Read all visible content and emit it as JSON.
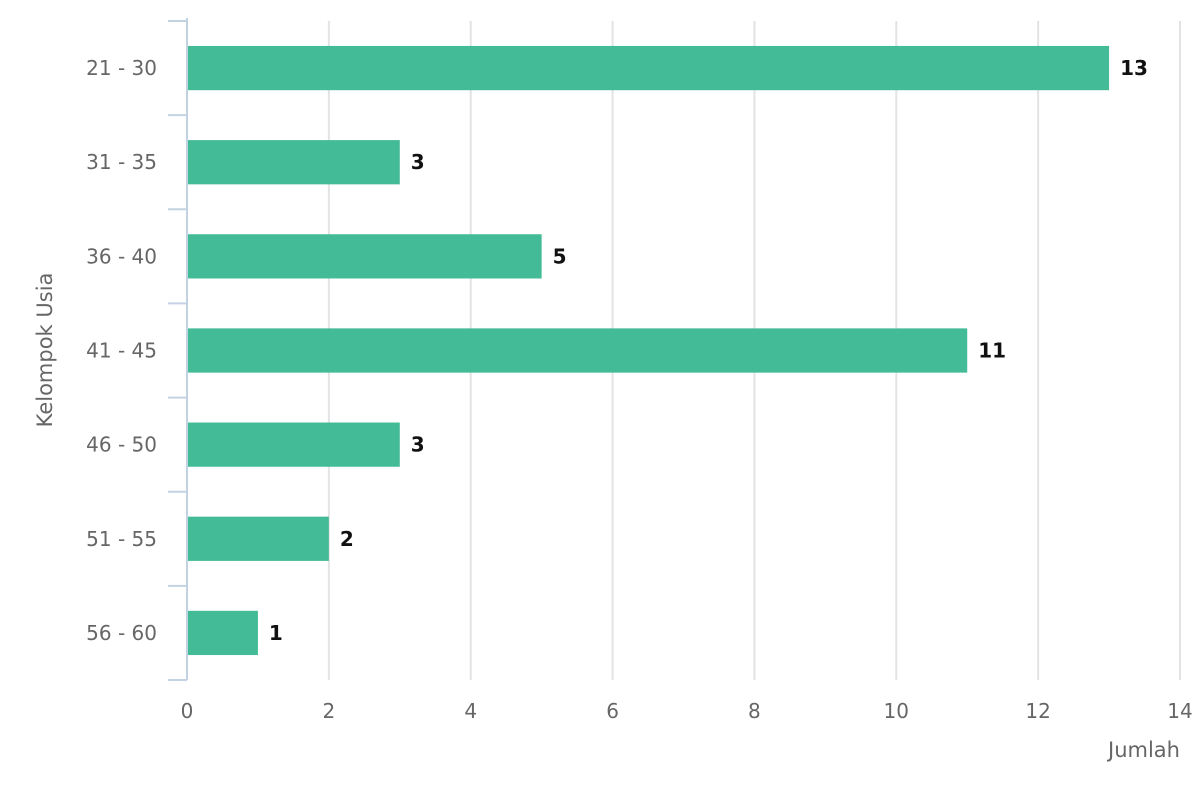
{
  "chart_data": {
    "type": "bar",
    "orientation": "horizontal",
    "categories": [
      "21 - 30",
      "31 - 35",
      "36 - 40",
      "41 - 45",
      "46 - 50",
      "51 - 55",
      "56 - 60"
    ],
    "values": [
      13,
      3,
      5,
      11,
      3,
      2,
      1
    ],
    "title": "",
    "xlabel": "Jumlah",
    "ylabel": "Kelompok Usia",
    "xlim": [
      0,
      14
    ],
    "x_ticks": [
      0,
      2,
      4,
      6,
      8,
      10,
      12,
      14
    ],
    "grid": true,
    "legend": "none",
    "data_labels": true,
    "colors": {
      "bar": "#43bb96",
      "grid": "#e3e3e6",
      "axis": "#c3d2e3",
      "text": "#666666",
      "data_label": "#111111"
    }
  }
}
